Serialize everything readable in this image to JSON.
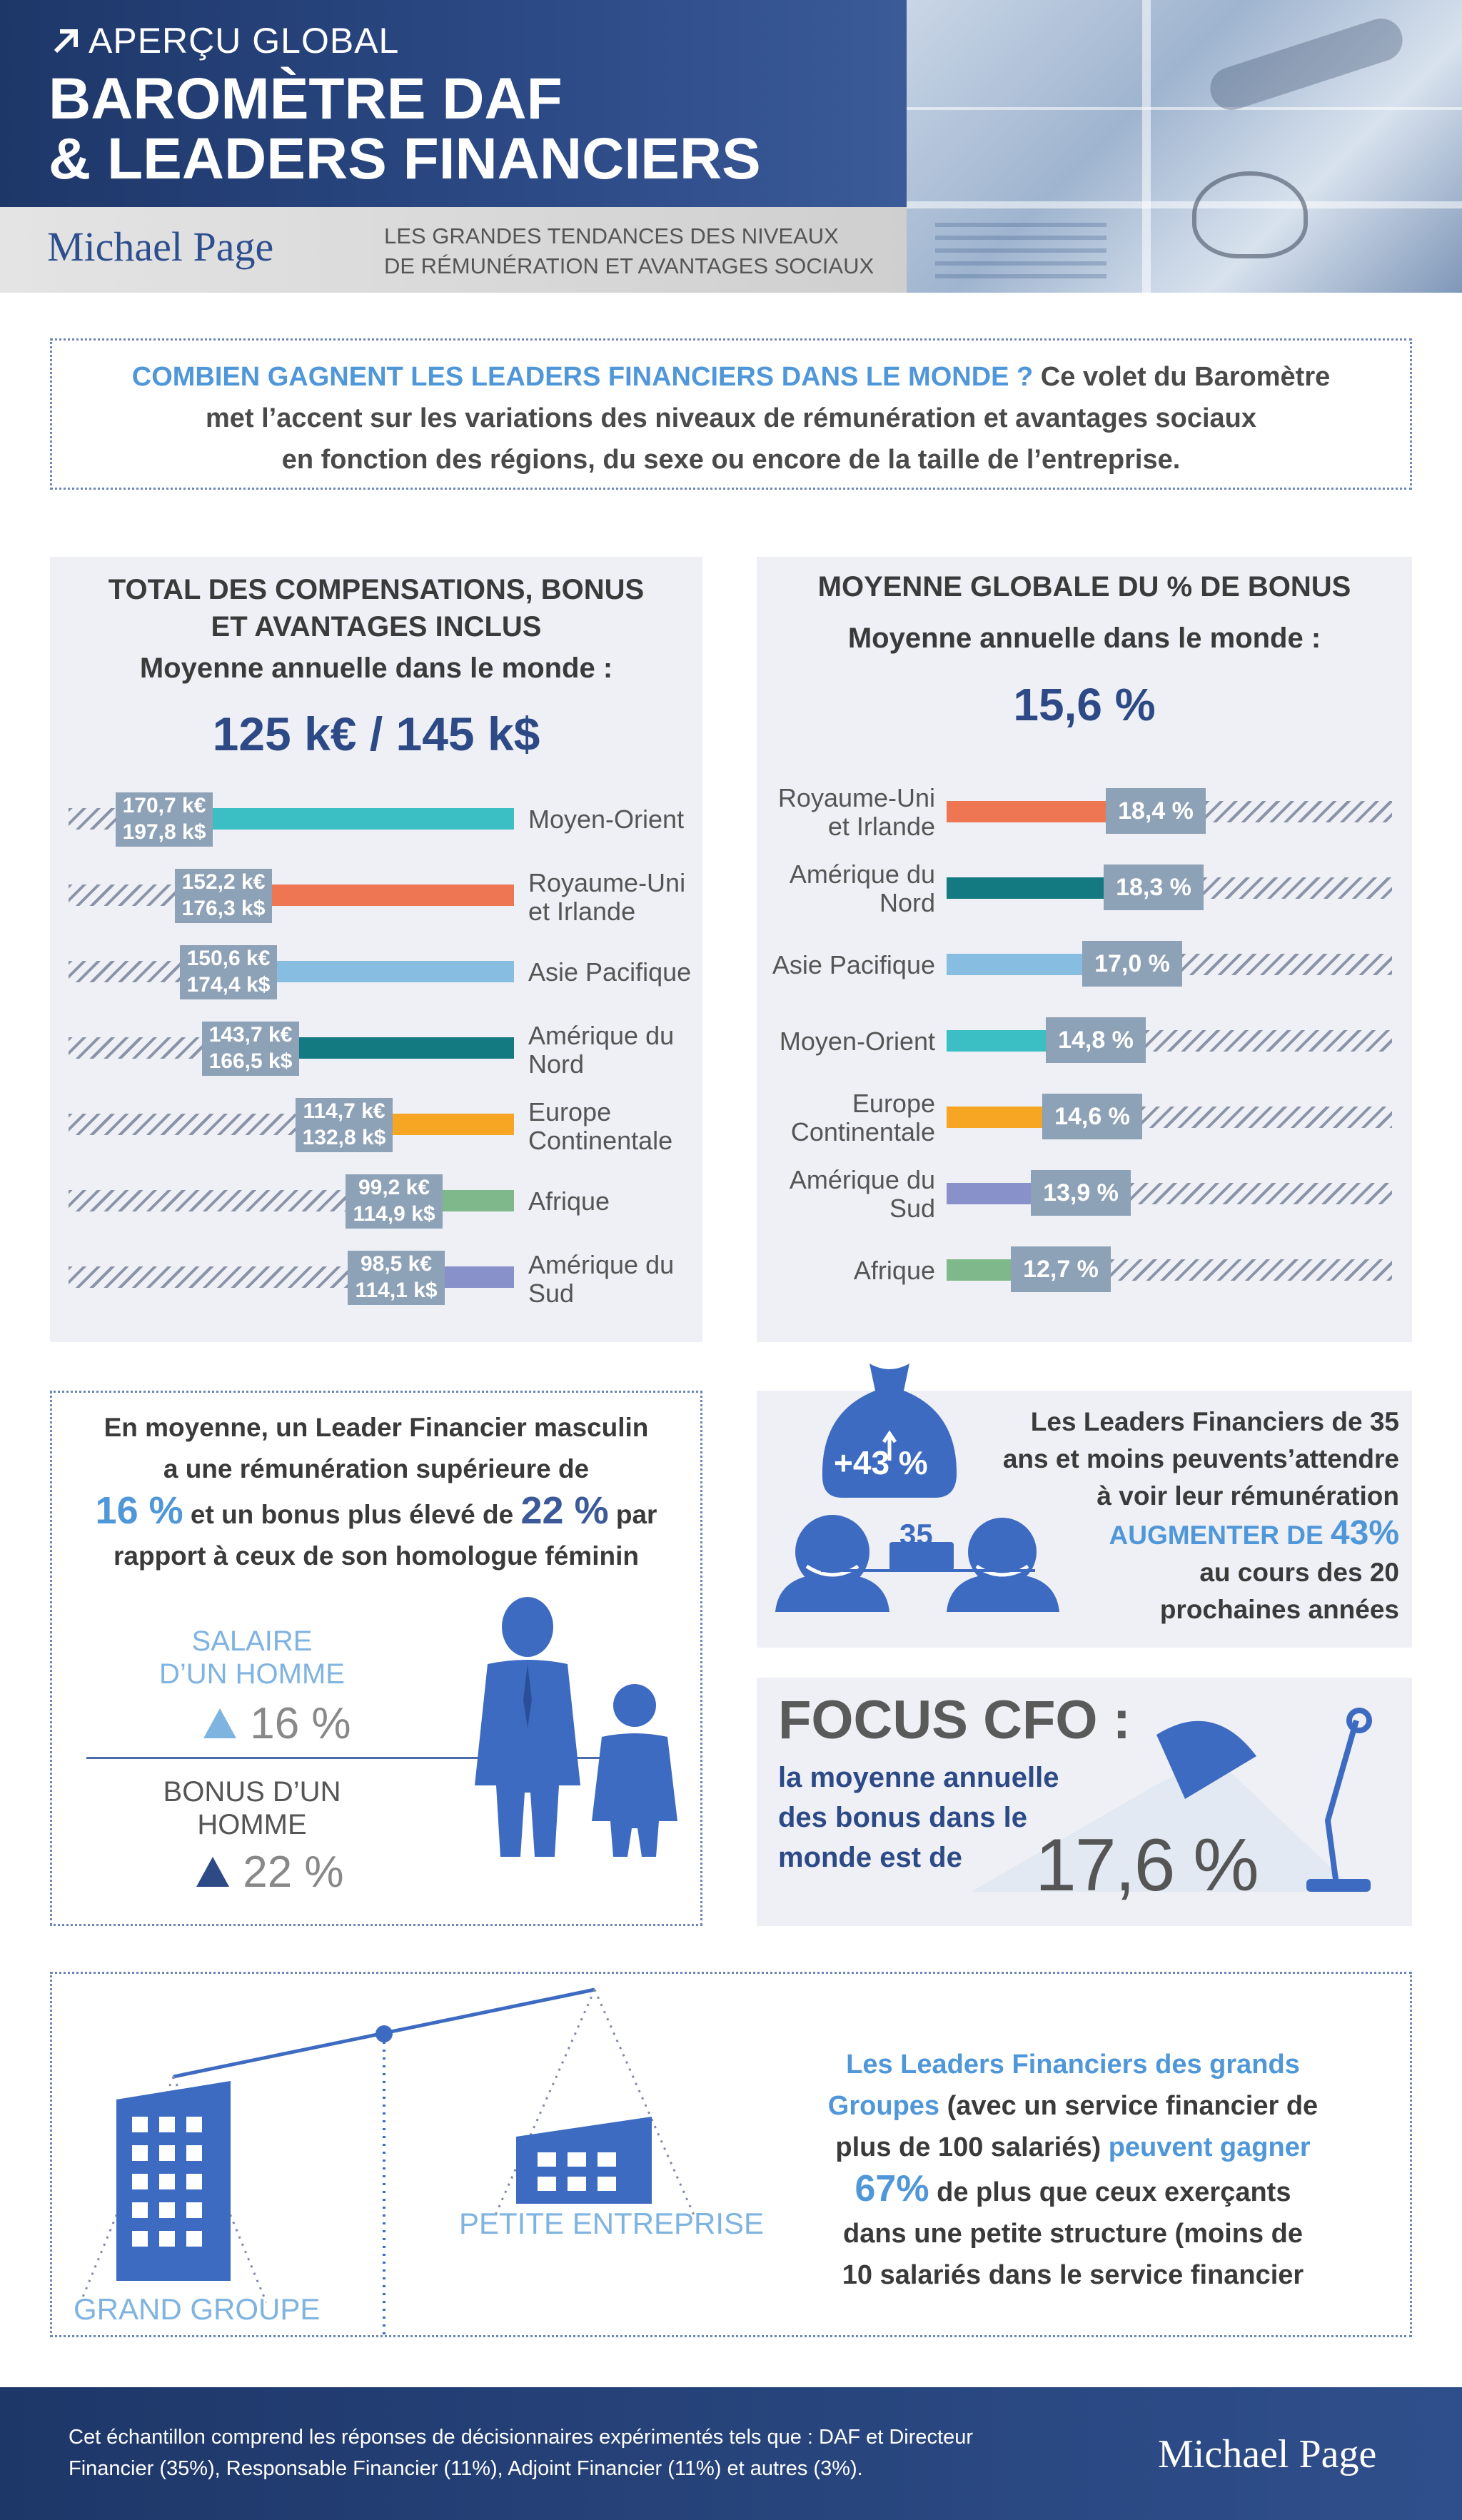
{
  "header": {
    "kicker": "APERÇU GLOBAL",
    "title_line1": "BAROMÈTRE DAF",
    "title_line2": "& LEADERS FINANCIERS",
    "logo": "Michael Page",
    "tagline_line1": "LES GRANDES TENDANCES DES NIVEAUX",
    "tagline_line2": "DE RÉMUNÉRATION ET AVANTAGES SOCIAUX"
  },
  "intro": {
    "question": "COMBIEN GAGNENT LES LEADERS FINANCIERS DANS LE MONDE ?",
    "line1_rest": " Ce volet du Baromètre",
    "line2": "met l’accent sur les variations des niveaux de rémunération et avantages sociaux",
    "line3": "en fonction des régions, du sexe ou encore de la taille de l’entreprise."
  },
  "compensation": {
    "title_line1": "TOTAL DES COMPENSATIONS, BONUS",
    "title_line2": "ET AVANTAGES INCLUS",
    "subtitle": "Moyenne annuelle dans le monde :",
    "average": "125 k€ / 145 k$",
    "items": [
      {
        "region1": "Moyen-Orient",
        "region2": "",
        "eur": "170,7 k€",
        "usd": "197,8 k$",
        "color": "#3cbfc4",
        "value_keur": 170.7
      },
      {
        "region1": "Royaume-Uni",
        "region2": "et Irlande",
        "eur": "152,2 k€",
        "usd": "176,3 k$",
        "color": "#ef7652",
        "value_keur": 152.2
      },
      {
        "region1": "Asie Pacifique",
        "region2": "",
        "eur": "150,6 k€",
        "usd": "174,4 k$",
        "color": "#86bde0",
        "value_keur": 150.6
      },
      {
        "region1": "Amérique du",
        "region2": "Nord",
        "eur": "143,7 k€",
        "usd": "166,5 k$",
        "color": "#127a80",
        "value_keur": 143.7
      },
      {
        "region1": "Europe",
        "region2": "Continentale",
        "eur": "114,7 k€",
        "usd": "132,8 k$",
        "color": "#f6a623",
        "value_keur": 114.7
      },
      {
        "region1": "Afrique",
        "region2": "",
        "eur": "99,2 k€",
        "usd": "114,9 k$",
        "color": "#7fb98b",
        "value_keur": 99.2
      },
      {
        "region1": "Amérique du",
        "region2": "Sud",
        "eur": "98,5 k€",
        "usd": "114,1 k$",
        "color": "#8891c9",
        "value_keur": 98.5
      }
    ]
  },
  "bonus": {
    "title": "MOYENNE GLOBALE DU % DE BONUS",
    "subtitle": "Moyenne annuelle dans le monde :",
    "average": "15,6 %",
    "items": [
      {
        "region1": "Royaume-Uni",
        "region2": "et Irlande",
        "label": "18,4 %",
        "color": "#ef7652",
        "value": 18.4
      },
      {
        "region1": "Amérique du",
        "region2": "Nord",
        "label": "18,3 %",
        "color": "#127a80",
        "value": 18.3
      },
      {
        "region1": "Asie Pacifique",
        "region2": "",
        "label": "17,0 %",
        "color": "#86bde0",
        "value": 17.0
      },
      {
        "region1": "Moyen-Orient",
        "region2": "",
        "label": "14,8 %",
        "color": "#3cbfc4",
        "value": 14.8
      },
      {
        "region1": "Europe",
        "region2": "Continentale",
        "label": "14,6 %",
        "color": "#f6a623",
        "value": 14.6
      },
      {
        "region1": "Amérique du",
        "region2": "Sud",
        "label": "13,9 %",
        "color": "#8891c9",
        "value": 13.9
      },
      {
        "region1": "Afrique",
        "region2": "",
        "label": "12,7 %",
        "color": "#7fb98b",
        "value": 12.7
      }
    ]
  },
  "gender": {
    "line1": "En moyenne, un Leader Financier masculin",
    "line2": "a une rémunération supérieure de",
    "pct1": "16 %",
    "line3_mid": " et un bonus plus élevé de ",
    "pct2": "22 %",
    "line3_end": " par",
    "line4": "rapport à ceux de son homologue féminin",
    "salary_label1": "SALAIRE",
    "salary_label2": "D’UN HOMME",
    "salary_value": "16 %",
    "bonus_label1": "BONUS D’UN",
    "bonus_label2": "HOMME",
    "bonus_value": "22 %"
  },
  "young": {
    "bag_pct": "+43 %",
    "age": "35",
    "line1": "Les Leaders Financiers de 35",
    "line2": "ans et moins peuvents’attendre",
    "line3": "à voir leur rémunération",
    "highlight": "AUGMENTER DE",
    "highlight_pct": "43%",
    "line5": "au cours des 20",
    "line6": "prochaines années"
  },
  "cfo": {
    "title": "FOCUS CFO :",
    "line1": "la moyenne annuelle",
    "line2": "des bonus dans le",
    "line3": "monde est de",
    "value": "17,6 %"
  },
  "size": {
    "big_label": "GRAND GROUPE",
    "small_label": "PETITE ENTREPRISE",
    "line1": "Les Leaders Financiers des grands",
    "line2a": "Groupes",
    "line2b": " (avec un service financier de",
    "line3a": "plus de 100 salariés) ",
    "line3b": "peuvent gagner",
    "line4a": "67%",
    "line4b": " de plus que ceux exerçants",
    "line5": "dans  une petite structure (moins de",
    "line6": "10 salariés dans le service financier"
  },
  "footer": {
    "line1": "Cet échantillon comprend les réponses de décisionnaires expérimentés tels que : DAF et  Directeur",
    "line2": "Financier (35%), Responsable Financier (11%), Adjoint Financier (11%) et autres (3%).",
    "logo": "Michael Page"
  }
}
